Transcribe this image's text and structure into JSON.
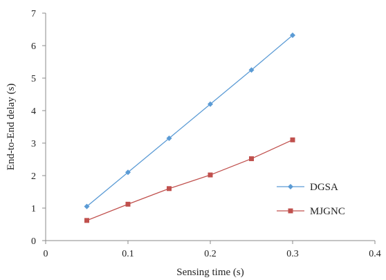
{
  "chart_data": {
    "type": "line",
    "title": "",
    "xlabel": "Sensing time (s)",
    "ylabel": "End-to-End delay (s)",
    "xlim": [
      0,
      0.4
    ],
    "ylim": [
      0,
      7
    ],
    "x_ticks": [
      0,
      0.1,
      0.2,
      0.3,
      0.4
    ],
    "x_tick_labels": [
      "0",
      "0.1",
      "0.2",
      "0.3",
      "0.4"
    ],
    "y_ticks": [
      0,
      1,
      2,
      3,
      4,
      5,
      6,
      7
    ],
    "y_tick_labels": [
      "0",
      "1",
      "2",
      "3",
      "4",
      "5",
      "6",
      "7"
    ],
    "grid": false,
    "legend_position": "right",
    "series": [
      {
        "name": "DGSA",
        "color": "#5B9BD5",
        "marker": "diamond",
        "x": [
          0.05,
          0.1,
          0.15,
          0.2,
          0.25,
          0.3
        ],
        "values": [
          1.05,
          2.1,
          3.15,
          4.2,
          5.25,
          6.32
        ]
      },
      {
        "name": "MJGNC",
        "color": "#C0504D",
        "marker": "square",
        "x": [
          0.05,
          0.1,
          0.15,
          0.2,
          0.25,
          0.3
        ],
        "values": [
          0.62,
          1.12,
          1.6,
          2.02,
          2.52,
          3.1
        ]
      }
    ]
  }
}
